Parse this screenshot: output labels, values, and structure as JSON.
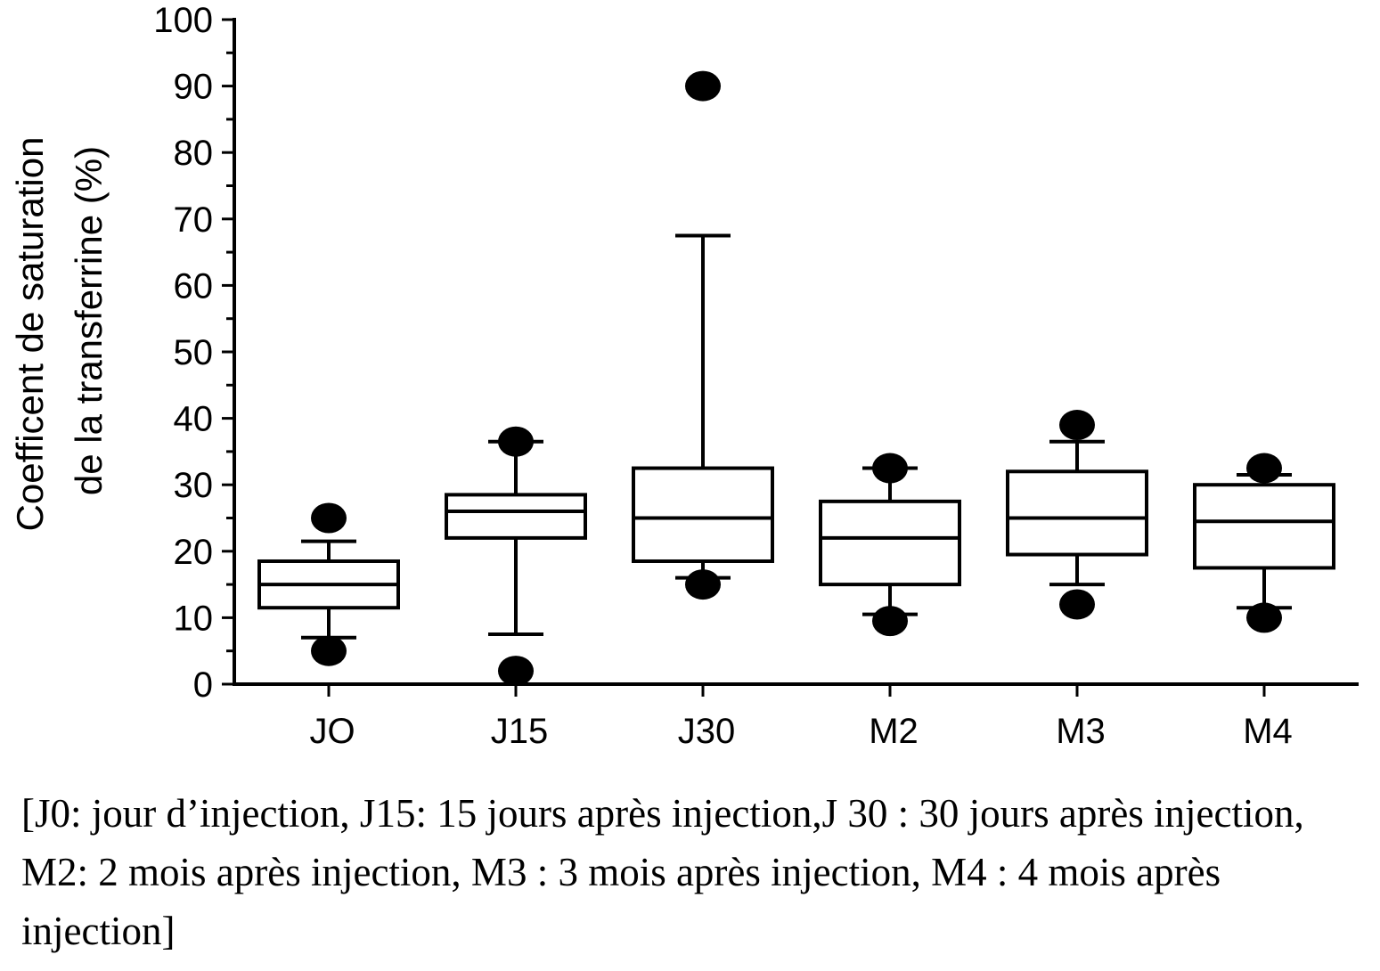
{
  "chart_data": {
    "type": "box",
    "ylabel_line1": "Coefficent de saturation",
    "ylabel_line2": "de la transferrine (%)",
    "ylim": [
      0,
      100
    ],
    "yticks": [
      0,
      10,
      20,
      30,
      40,
      50,
      60,
      70,
      80,
      90,
      100
    ],
    "ytick_labels": [
      "0",
      "10",
      "20",
      "30",
      "40",
      "50",
      "60",
      "70",
      "80",
      "90",
      "100"
    ],
    "categories": [
      "JO",
      "J15",
      "J30",
      "M2",
      "M3",
      "M4"
    ],
    "boxes": [
      {
        "category": "JO",
        "whisker_low": 7,
        "q1": 11.5,
        "median": 15,
        "q3": 18.5,
        "whisker_high": 21.5,
        "outliers": [
          5,
          25
        ]
      },
      {
        "category": "J15",
        "whisker_low": 7.5,
        "q1": 22,
        "median": 26,
        "q3": 28.5,
        "whisker_high": 36.5,
        "outliers": [
          2,
          36.5
        ]
      },
      {
        "category": "J30",
        "whisker_low": 16,
        "q1": 18.5,
        "median": 25,
        "q3": 32.5,
        "whisker_high": 67.5,
        "outliers": [
          15,
          90
        ]
      },
      {
        "category": "M2",
        "whisker_low": 10.5,
        "q1": 15,
        "median": 22,
        "q3": 27.5,
        "whisker_high": 32.5,
        "outliers": [
          9.5,
          32.5
        ]
      },
      {
        "category": "M3",
        "whisker_low": 15,
        "q1": 19.5,
        "median": 25,
        "q3": 32,
        "whisker_high": 36.5,
        "outliers": [
          12,
          39
        ]
      },
      {
        "category": "M4",
        "whisker_low": 11.5,
        "q1": 17.5,
        "median": 24.5,
        "q3": 30,
        "whisker_high": 31.5,
        "outliers": [
          10,
          32.5
        ]
      }
    ]
  },
  "caption": "[J0: jour d’injection, J15: 15 jours après injection,J 30 : 30 jours après injection, M2: 2 mois après injection, M3 : 3 mois après injection, M4 : 4 mois après injection]"
}
